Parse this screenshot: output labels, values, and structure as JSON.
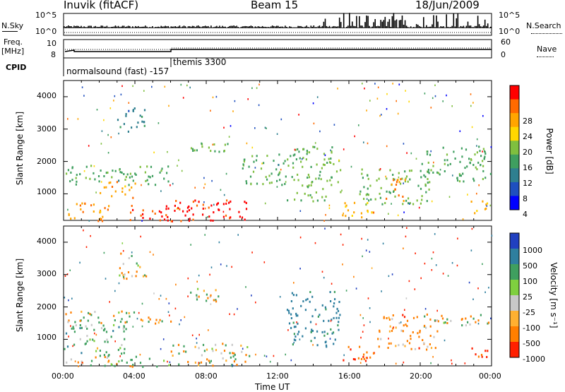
{
  "header": {
    "station": "Inuvik (fitACF)",
    "beam": "Beam 15",
    "date": "18/Jun/2009"
  },
  "panels": {
    "nsky": {
      "left_label": "N.Sky",
      "right_label": "N.Search",
      "left_ticks": [
        "10^5",
        "10^0"
      ],
      "right_ticks": [
        "10^5",
        "10^0"
      ]
    },
    "freq": {
      "left_label_top": "Freq.",
      "left_label_unit": "[MHz]",
      "left_ticks": [
        "10",
        "8"
      ],
      "right_label": "Nave",
      "right_ticks": [
        "60",
        "0"
      ]
    },
    "cpid": {
      "label": "CPID",
      "modes": [
        "normalsound (fast) -157",
        "themis 3300"
      ]
    }
  },
  "axes": {
    "ylabel": "Slant Range [km]",
    "yticks": [
      "4000",
      "3000",
      "2000",
      "1000"
    ],
    "xlabel": "Time UT",
    "xticks": [
      "00:00",
      "04:00",
      "08:00",
      "12:00",
      "16:00",
      "20:00",
      "00:00"
    ]
  },
  "colorbars": {
    "power": {
      "label": "Power [dB]",
      "ticks": [
        "28",
        "24",
        "20",
        "16",
        "12",
        "8",
        "4"
      ],
      "colors": [
        "#ff0000",
        "#ff6a00",
        "#ffa500",
        "#ffd700",
        "#7fbf3f",
        "#3f9f5f",
        "#2f7f8f",
        "#1f4fbf",
        "#0000ff"
      ]
    },
    "velocity": {
      "label": "Velocity [m s⁻¹]",
      "ticks": [
        "1000",
        "500",
        "100",
        "25",
        "-25",
        "-100",
        "-500",
        "-1000"
      ],
      "colors": [
        "#2040c0",
        "#2f7f9f",
        "#3f9f5f",
        "#7fcf3f",
        "#c8c8c8",
        "#ffb030",
        "#ff7f00",
        "#ff2000"
      ]
    }
  },
  "chart_data": [
    {
      "type": "line",
      "title": "N.Sky / N.Search",
      "x": [
        "00:00",
        "04:00",
        "08:00",
        "12:00",
        "16:00",
        "20:00",
        "00:00"
      ],
      "series": [
        {
          "name": "N.Sky",
          "values": [
            300,
            600,
            400,
            500,
            2000,
            1500,
            500
          ]
        },
        {
          "name": "N.Search",
          "values": [
            1,
            1,
            1,
            1,
            1,
            1,
            1
          ]
        }
      ]
    },
    {
      "type": "line",
      "title": "Freq. / Nave",
      "x": [
        "00:00",
        "02:00",
        "04:00",
        "06:00",
        "08:00",
        "12:00",
        "16:00",
        "20:00",
        "00:00"
      ],
      "series": [
        {
          "name": "Freq.",
          "values": [
            10.5,
            9.2,
            9.2,
            9.2,
            10.3,
            10.3,
            10.3,
            10.3,
            10.3
          ]
        },
        {
          "name": "Nave",
          "values": [
            30,
            32,
            32,
            32,
            30,
            30,
            30,
            30,
            30
          ]
        }
      ],
      "ylim": [
        8,
        12
      ]
    },
    {
      "type": "heatmap",
      "title": "Power",
      "xlabel": "Time UT",
      "ylabel": "Slant Range [km]",
      "xlim": [
        "00:00",
        "24:00"
      ],
      "ylim": [
        180,
        4500
      ],
      "zlim": [
        0,
        30
      ],
      "zunit": "dB",
      "blobs": [
        {
          "t0": 0.2,
          "t1": 2.5,
          "r0": 180,
          "r1": 800,
          "z": 24
        },
        {
          "t0": 2.0,
          "t1": 4.0,
          "r0": 900,
          "r1": 1400,
          "z": 22
        },
        {
          "t0": 3.5,
          "t1": 6.0,
          "r0": 180,
          "r1": 700,
          "z": 28
        },
        {
          "t0": 6.0,
          "t1": 10.5,
          "r0": 180,
          "r1": 900,
          "z": 30
        },
        {
          "t0": 0.0,
          "t1": 6.0,
          "r0": 1300,
          "r1": 1900,
          "z": 12
        },
        {
          "t0": 3.0,
          "t1": 4.6,
          "r0": 2900,
          "r1": 3700,
          "z": 8
        },
        {
          "t0": 7.0,
          "t1": 9.5,
          "r0": 2200,
          "r1": 2600,
          "z": 14
        },
        {
          "t0": 10.0,
          "t1": 12.5,
          "r0": 1300,
          "r1": 2300,
          "z": 12
        },
        {
          "t0": 12.5,
          "t1": 15.5,
          "r0": 800,
          "r1": 2500,
          "z": 14
        },
        {
          "t0": 15.5,
          "t1": 17.5,
          "r0": 300,
          "r1": 800,
          "z": 22
        },
        {
          "t0": 16.5,
          "t1": 20.5,
          "r0": 700,
          "r1": 1800,
          "z": 14
        },
        {
          "t0": 18.0,
          "t1": 19.2,
          "r0": 800,
          "r1": 1500,
          "z": 24
        },
        {
          "t0": 20.0,
          "t1": 24.0,
          "r0": 1400,
          "r1": 2500,
          "z": 12
        },
        {
          "t0": 22.8,
          "t1": 24.0,
          "r0": 400,
          "r1": 800,
          "z": 22
        }
      ]
    },
    {
      "type": "heatmap",
      "title": "Velocity",
      "xlabel": "Time UT",
      "ylabel": "Slant Range [km]",
      "xlim": [
        "00:00",
        "24:00"
      ],
      "ylim": [
        180,
        4500
      ],
      "zlim": [
        -1000,
        1000
      ],
      "zunit": "m s^-1",
      "blobs": [
        {
          "t0": 0.0,
          "t1": 3.5,
          "r0": 500,
          "r1": 1500,
          "z": 150
        },
        {
          "t0": 0.0,
          "t1": 6.0,
          "r0": 180,
          "r1": 500,
          "z": 60
        },
        {
          "t0": 6.0,
          "t1": 10.5,
          "r0": 180,
          "r1": 900,
          "z": 0
        },
        {
          "t0": 0.0,
          "t1": 6.0,
          "r0": 1500,
          "r1": 1900,
          "z": 0
        },
        {
          "t0": 7.0,
          "t1": 9.5,
          "r0": 2200,
          "r1": 2600,
          "z": 0
        },
        {
          "t0": 12.5,
          "t1": 15.5,
          "r0": 800,
          "r1": 2500,
          "z": 400
        },
        {
          "t0": 15.5,
          "t1": 17.5,
          "r0": 300,
          "r1": 800,
          "z": -300
        },
        {
          "t0": 17.5,
          "t1": 21.0,
          "r0": 700,
          "r1": 1800,
          "z": -150
        },
        {
          "t0": 20.0,
          "t1": 24.0,
          "r0": 1400,
          "r1": 1800,
          "z": 0
        },
        {
          "t0": 22.8,
          "t1": 24.0,
          "r0": 400,
          "r1": 800,
          "z": -300
        },
        {
          "t0": 3.0,
          "t1": 4.6,
          "r0": 2900,
          "r1": 3700,
          "z": 0
        }
      ]
    }
  ]
}
